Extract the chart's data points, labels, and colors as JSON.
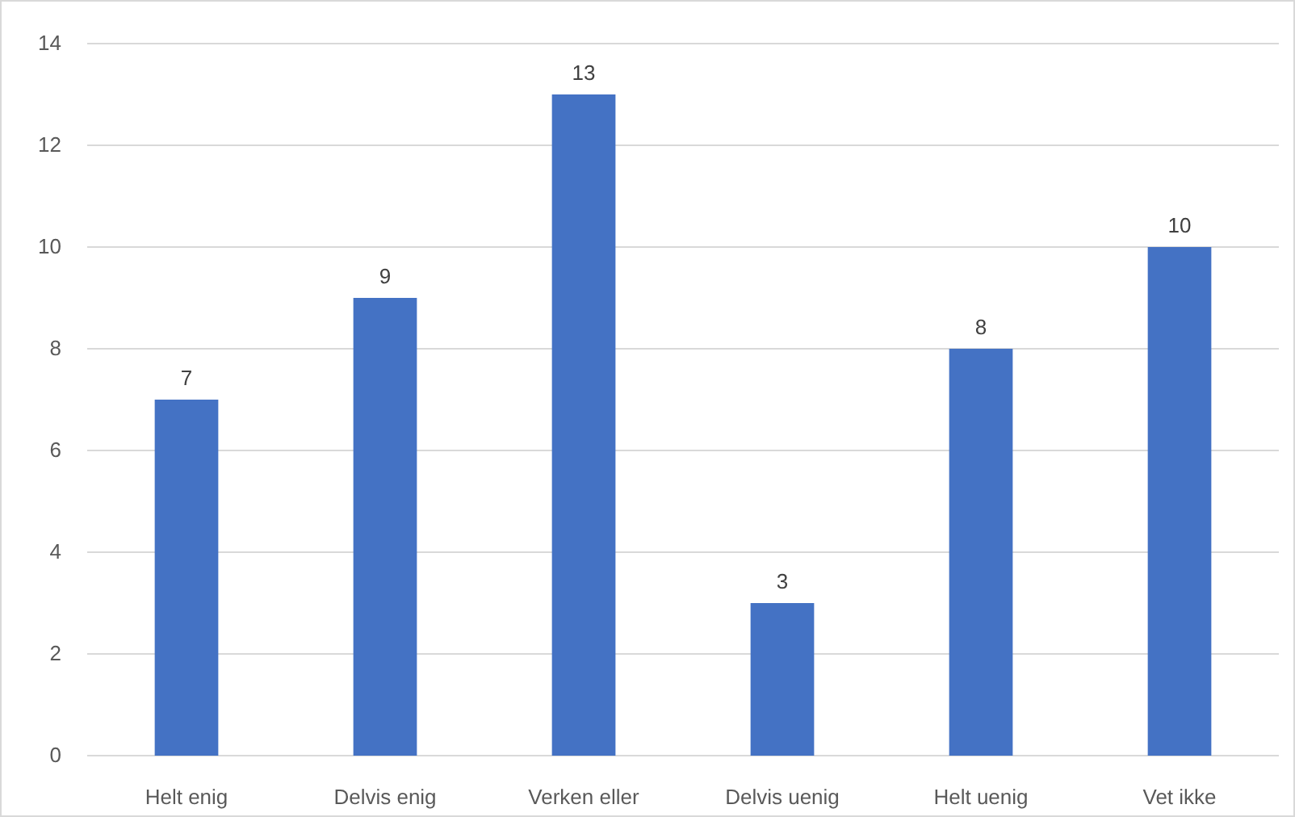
{
  "chart_data": {
    "type": "bar",
    "categories": [
      "Helt enig",
      "Delvis enig",
      "Verken eller",
      "Delvis uenig",
      "Helt uenig",
      "Vet ikke"
    ],
    "values": [
      7,
      9,
      13,
      3,
      8,
      10
    ],
    "color": "#4472c4",
    "ylim": [
      0,
      14
    ],
    "yticks": [
      0,
      2,
      4,
      6,
      8,
      10,
      12,
      14
    ],
    "grid": "y",
    "data_labels": true
  }
}
